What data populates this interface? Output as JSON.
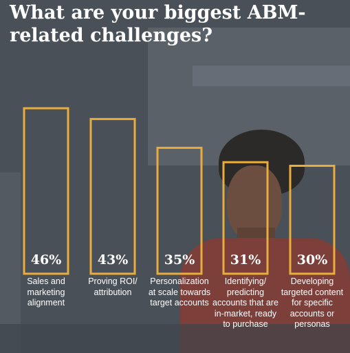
{
  "title": "What are your biggest ABM-related challenges?",
  "colors": {
    "bar_outline": "#e9ad3d",
    "text": "#ffffff",
    "overlay": "#4a5058"
  },
  "chart_data": {
    "type": "bar",
    "title": "What are your biggest ABM-related challenges?",
    "categories": [
      "Sales and marketing alignment",
      "Proving ROI/ attribution",
      "Personalization at scale towards target accounts",
      "Identifying/ predicting accounts that are in-market, ready to purchase",
      "Developing targeted content for specific accounts or personas"
    ],
    "values": [
      46,
      43,
      35,
      31,
      30
    ],
    "value_labels": [
      "46%",
      "43%",
      "35%",
      "31%",
      "30%"
    ],
    "unit": "%",
    "ylim": [
      0,
      46
    ],
    "grid": false,
    "legend": "none"
  }
}
